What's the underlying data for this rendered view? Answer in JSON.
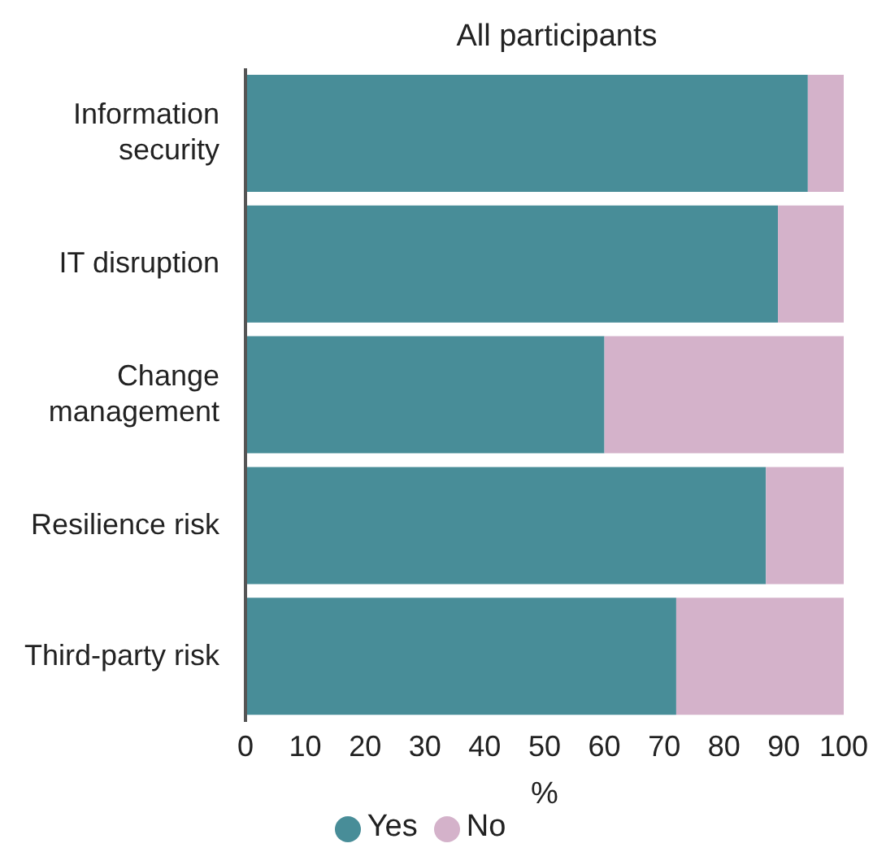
{
  "chart_data": {
    "type": "bar",
    "orientation": "horizontal",
    "stacked": true,
    "title": "All participants",
    "xlabel": "%",
    "categories": [
      "Information security",
      "IT disruption",
      "Change management",
      "Resilience risk",
      "Third-party risk"
    ],
    "series": [
      {
        "name": "Yes",
        "color": "#488d98",
        "values": [
          94,
          89,
          60,
          87,
          72
        ]
      },
      {
        "name": "No",
        "color": "#d4b2ca",
        "values": [
          6,
          11,
          40,
          13,
          28
        ]
      }
    ],
    "xlim": [
      0,
      100
    ],
    "xticks": [
      0,
      10,
      20,
      30,
      40,
      50,
      60,
      70,
      80,
      90,
      100
    ],
    "grid": false,
    "legend": "bottom"
  }
}
